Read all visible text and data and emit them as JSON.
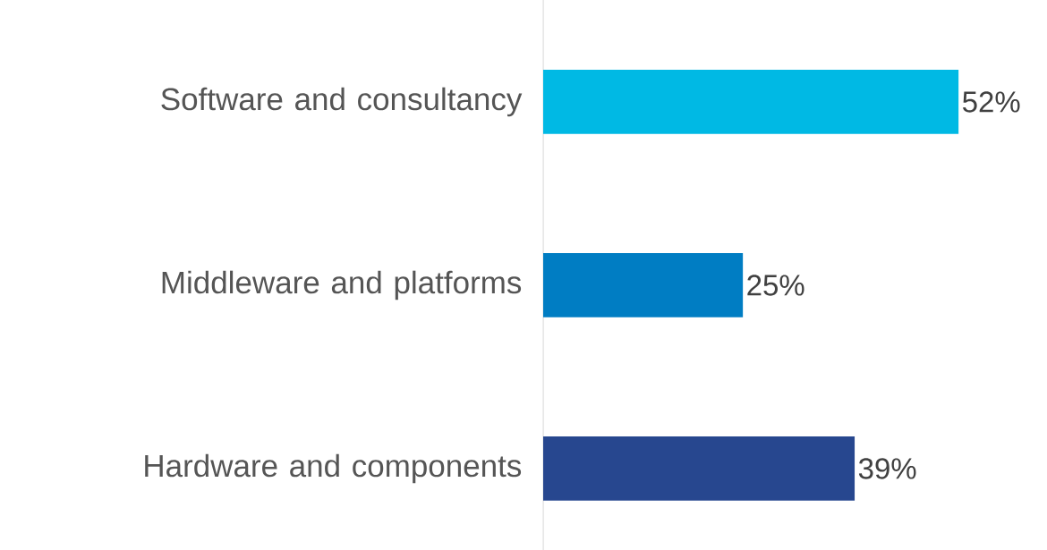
{
  "chart_data": {
    "type": "bar",
    "orientation": "horizontal",
    "categories": [
      "Software and consultancy",
      "Middleware and platforms",
      "Hardware and components"
    ],
    "values": [
      52,
      25,
      39
    ],
    "colors": [
      "#00b9e4",
      "#007dc3",
      "#27478f"
    ],
    "value_labels": [
      "52%",
      "25%",
      "39%"
    ]
  }
}
